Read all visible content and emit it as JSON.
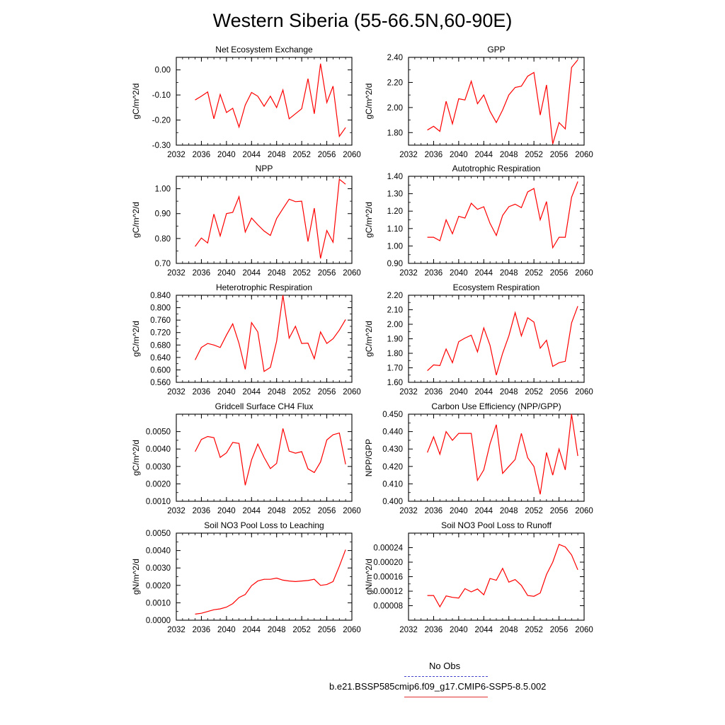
{
  "title": "Western Siberia (55-66.5N,60-90E)",
  "series_color": "#ff0000",
  "obs_color": "#4444cc",
  "legend": [
    {
      "label": "No Obs",
      "style": "dashed",
      "color": "#4444cc"
    },
    {
      "label": "b.e21.BSSP585cmip6.f09_g17.CMIP6-SSP5-8.5.002",
      "style": "solid",
      "color": "#ff0000"
    }
  ],
  "chart_data": [
    {
      "type": "line",
      "title": "Net Ecosystem Exchange",
      "ylabel": "gC/m^2/d",
      "xlim": [
        2032,
        2060
      ],
      "xticks": [
        2032,
        2036,
        2040,
        2044,
        2048,
        2052,
        2056,
        2060
      ],
      "ylim": [
        -0.3,
        0.05
      ],
      "yticks": [
        -0.3,
        -0.2,
        -0.1,
        0.0
      ],
      "yticklabels": [
        "-0.30",
        "-0.20",
        "-0.10",
        "0.00"
      ],
      "x": [
        2035,
        2036,
        2037,
        2038,
        2039,
        2040,
        2041,
        2042,
        2043,
        2044,
        2045,
        2046,
        2047,
        2048,
        2049,
        2050,
        2051,
        2052,
        2053,
        2054,
        2055,
        2056,
        2057,
        2058,
        2059
      ],
      "series": [
        {
          "values": [
            -0.12,
            -0.105,
            -0.088,
            -0.195,
            -0.098,
            -0.17,
            -0.153,
            -0.228,
            -0.14,
            -0.09,
            -0.105,
            -0.145,
            -0.105,
            -0.15,
            -0.08,
            -0.195,
            -0.175,
            -0.155,
            -0.035,
            -0.175,
            0.025,
            -0.13,
            -0.065,
            -0.265,
            -0.23
          ]
        }
      ]
    },
    {
      "type": "line",
      "title": "GPP",
      "ylabel": "gC/m^2/d",
      "xlim": [
        2032,
        2060
      ],
      "xticks": [
        2032,
        2036,
        2040,
        2044,
        2048,
        2052,
        2056,
        2060
      ],
      "ylim": [
        1.7,
        2.4
      ],
      "yticks": [
        1.8,
        2.0,
        2.2,
        2.4
      ],
      "yticklabels": [
        "1.80",
        "2.00",
        "2.20",
        "2.40"
      ],
      "x": [
        2035,
        2036,
        2037,
        2038,
        2039,
        2040,
        2041,
        2042,
        2043,
        2044,
        2045,
        2046,
        2047,
        2048,
        2049,
        2050,
        2051,
        2052,
        2053,
        2054,
        2055,
        2056,
        2057,
        2058,
        2059
      ],
      "series": [
        {
          "values": [
            1.82,
            1.85,
            1.81,
            2.05,
            1.87,
            2.07,
            2.06,
            2.21,
            2.03,
            2.1,
            1.97,
            1.88,
            1.98,
            2.1,
            2.16,
            2.17,
            2.25,
            2.28,
            1.94,
            2.18,
            1.71,
            1.88,
            1.83,
            2.32,
            2.38
          ]
        }
      ]
    },
    {
      "type": "line",
      "title": "NPP",
      "ylabel": "gC/m^2/d",
      "xlim": [
        2032,
        2060
      ],
      "xticks": [
        2032,
        2036,
        2040,
        2044,
        2048,
        2052,
        2056,
        2060
      ],
      "ylim": [
        0.7,
        1.05
      ],
      "yticks": [
        0.7,
        0.8,
        0.9,
        1.0
      ],
      "yticklabels": [
        "0.70",
        "0.80",
        "0.90",
        "1.00"
      ],
      "x": [
        2035,
        2036,
        2037,
        2038,
        2039,
        2040,
        2041,
        2042,
        2043,
        2044,
        2045,
        2046,
        2047,
        2048,
        2049,
        2050,
        2051,
        2052,
        2053,
        2054,
        2055,
        2056,
        2057,
        2058,
        2059
      ],
      "series": [
        {
          "values": [
            0.768,
            0.802,
            0.782,
            0.898,
            0.81,
            0.9,
            0.905,
            0.968,
            0.826,
            0.882,
            0.855,
            0.83,
            0.812,
            0.88,
            0.92,
            0.958,
            0.948,
            0.95,
            0.788,
            0.922,
            0.72,
            0.832,
            0.785,
            1.038,
            1.018
          ]
        }
      ]
    },
    {
      "type": "line",
      "title": "Autotrophic Respiration",
      "ylabel": "gC/m^2/d",
      "xlim": [
        2032,
        2060
      ],
      "xticks": [
        2032,
        2036,
        2040,
        2044,
        2048,
        2052,
        2056,
        2060
      ],
      "ylim": [
        0.9,
        1.4
      ],
      "yticks": [
        0.9,
        1.0,
        1.1,
        1.2,
        1.3,
        1.4
      ],
      "yticklabels": [
        "0.90",
        "1.00",
        "1.10",
        "1.20",
        "1.30",
        "1.40"
      ],
      "x": [
        2035,
        2036,
        2037,
        2038,
        2039,
        2040,
        2041,
        2042,
        2043,
        2044,
        2045,
        2046,
        2047,
        2048,
        2049,
        2050,
        2051,
        2052,
        2053,
        2054,
        2055,
        2056,
        2057,
        2058,
        2059
      ],
      "series": [
        {
          "values": [
            1.05,
            1.05,
            1.03,
            1.15,
            1.07,
            1.17,
            1.16,
            1.245,
            1.21,
            1.225,
            1.13,
            1.06,
            1.175,
            1.225,
            1.24,
            1.22,
            1.31,
            1.33,
            1.15,
            1.255,
            0.99,
            1.05,
            1.05,
            1.28,
            1.37
          ]
        }
      ]
    },
    {
      "type": "line",
      "title": "Heterotrophic Respiration",
      "ylabel": "gC/m^2/d",
      "xlim": [
        2032,
        2060
      ],
      "xticks": [
        2032,
        2036,
        2040,
        2044,
        2048,
        2052,
        2056,
        2060
      ],
      "ylim": [
        0.56,
        0.84
      ],
      "yticks": [
        0.56,
        0.6,
        0.64,
        0.68,
        0.72,
        0.76,
        0.8,
        0.84
      ],
      "yticklabels": [
        "0.560",
        "0.600",
        "0.640",
        "0.680",
        "0.720",
        "0.760",
        "0.800",
        "0.840"
      ],
      "x": [
        2035,
        2036,
        2037,
        2038,
        2039,
        2040,
        2041,
        2042,
        2043,
        2044,
        2045,
        2046,
        2047,
        2048,
        2049,
        2050,
        2051,
        2052,
        2053,
        2054,
        2055,
        2056,
        2057,
        2058,
        2059
      ],
      "series": [
        {
          "values": [
            0.632,
            0.672,
            0.685,
            0.68,
            0.672,
            0.712,
            0.748,
            0.685,
            0.602,
            0.752,
            0.722,
            0.595,
            0.608,
            0.692,
            0.84,
            0.702,
            0.74,
            0.685,
            0.686,
            0.636,
            0.722,
            0.685,
            0.7,
            0.728,
            0.762
          ]
        }
      ]
    },
    {
      "type": "line",
      "title": "Ecosystem Respiration",
      "ylabel": "gC/m^2/d",
      "xlim": [
        2032,
        2060
      ],
      "xticks": [
        2032,
        2036,
        2040,
        2044,
        2048,
        2052,
        2056,
        2060
      ],
      "ylim": [
        1.6,
        2.2
      ],
      "yticks": [
        1.6,
        1.7,
        1.8,
        1.9,
        2.0,
        2.1,
        2.2
      ],
      "yticklabels": [
        "1.60",
        "1.70",
        "1.80",
        "1.90",
        "2.00",
        "2.10",
        "2.20"
      ],
      "x": [
        2035,
        2036,
        2037,
        2038,
        2039,
        2040,
        2041,
        2042,
        2043,
        2044,
        2045,
        2046,
        2047,
        2048,
        2049,
        2050,
        2051,
        2052,
        2053,
        2054,
        2055,
        2056,
        2057,
        2058,
        2059
      ],
      "series": [
        {
          "values": [
            1.68,
            1.72,
            1.715,
            1.83,
            1.735,
            1.88,
            1.905,
            1.925,
            1.81,
            1.975,
            1.855,
            1.65,
            1.8,
            1.92,
            2.08,
            1.92,
            2.045,
            2.015,
            1.835,
            1.89,
            1.71,
            1.735,
            1.745,
            2.01,
            2.125
          ]
        }
      ]
    },
    {
      "type": "line",
      "title": "Gridcell Surface CH4 Flux",
      "ylabel": "gC/m^2/d",
      "xlim": [
        2032,
        2060
      ],
      "xticks": [
        2032,
        2036,
        2040,
        2044,
        2048,
        2052,
        2056,
        2060
      ],
      "ylim": [
        0.001,
        0.006
      ],
      "yticks": [
        0.001,
        0.002,
        0.003,
        0.004,
        0.005
      ],
      "yticklabels": [
        "0.0010",
        "0.0020",
        "0.0030",
        "0.0040",
        "0.0050"
      ],
      "x": [
        2035,
        2036,
        2037,
        2038,
        2039,
        2040,
        2041,
        2042,
        2043,
        2044,
        2045,
        2046,
        2047,
        2048,
        2049,
        2050,
        2051,
        2052,
        2053,
        2054,
        2055,
        2056,
        2057,
        2058,
        2059
      ],
      "series": [
        {
          "values": [
            0.00385,
            0.00455,
            0.00472,
            0.00465,
            0.00352,
            0.00378,
            0.00438,
            0.00432,
            0.00192,
            0.00338,
            0.00428,
            0.00352,
            0.00288,
            0.00318,
            0.00518,
            0.00388,
            0.00376,
            0.00385,
            0.00286,
            0.00265,
            0.00325,
            0.00452,
            0.00482,
            0.00492,
            0.00312
          ]
        }
      ]
    },
    {
      "type": "line",
      "title": "Carbon Use Efficiency (NPP/GPP)",
      "ylabel": "NPP/GPP",
      "xlim": [
        2032,
        2060
      ],
      "xticks": [
        2032,
        2036,
        2040,
        2044,
        2048,
        2052,
        2056,
        2060
      ],
      "ylim": [
        0.4,
        0.45
      ],
      "yticks": [
        0.4,
        0.41,
        0.42,
        0.43,
        0.44,
        0.45
      ],
      "yticklabels": [
        "0.400",
        "0.410",
        "0.420",
        "0.430",
        "0.440",
        "0.450"
      ],
      "x": [
        2035,
        2036,
        2037,
        2038,
        2039,
        2040,
        2041,
        2042,
        2043,
        2044,
        2045,
        2046,
        2047,
        2048,
        2049,
        2050,
        2051,
        2052,
        2053,
        2054,
        2055,
        2056,
        2057,
        2058,
        2059
      ],
      "series": [
        {
          "values": [
            0.428,
            0.437,
            0.427,
            0.44,
            0.435,
            0.439,
            0.439,
            0.439,
            0.412,
            0.418,
            0.433,
            0.444,
            0.416,
            0.42,
            0.424,
            0.439,
            0.425,
            0.42,
            0.404,
            0.428,
            0.415,
            0.43,
            0.418,
            0.45,
            0.426
          ]
        }
      ]
    },
    {
      "type": "line",
      "title": "Soil NO3 Pool Loss to Leaching",
      "ylabel": "gN/m^2/d",
      "xlim": [
        2032,
        2060
      ],
      "xticks": [
        2032,
        2036,
        2040,
        2044,
        2048,
        2052,
        2056,
        2060
      ],
      "ylim": [
        0.0,
        0.005
      ],
      "yticks": [
        0.0,
        0.001,
        0.002,
        0.003,
        0.004,
        0.005
      ],
      "yticklabels": [
        "0.0000",
        "0.0010",
        "0.0020",
        "0.0030",
        "0.0040",
        "0.0050"
      ],
      "x": [
        2035,
        2036,
        2037,
        2038,
        2039,
        2040,
        2041,
        2042,
        2043,
        2044,
        2045,
        2046,
        2047,
        2048,
        2049,
        2050,
        2051,
        2052,
        2053,
        2054,
        2055,
        2056,
        2057,
        2058,
        2059
      ],
      "series": [
        {
          "values": [
            0.00035,
            0.0004,
            0.0005,
            0.0006,
            0.00065,
            0.00075,
            0.00095,
            0.0013,
            0.00148,
            0.00198,
            0.00225,
            0.00235,
            0.00235,
            0.00242,
            0.0023,
            0.00225,
            0.00222,
            0.00225,
            0.00228,
            0.00235,
            0.002,
            0.00205,
            0.00222,
            0.0031,
            0.00405
          ]
        }
      ]
    },
    {
      "type": "line",
      "title": "Soil NO3 Pool Loss to Runoff",
      "ylabel": "gN/m^2/d",
      "xlim": [
        2032,
        2060
      ],
      "xticks": [
        2032,
        2036,
        2040,
        2044,
        2048,
        2052,
        2056,
        2060
      ],
      "ylim": [
        4e-05,
        0.00028
      ],
      "yticks": [
        8e-05,
        0.00012,
        0.00016,
        0.0002,
        0.00024
      ],
      "yticklabels": [
        "0.00008",
        "0.00012",
        "0.00016",
        "0.00020",
        "0.00024"
      ],
      "x": [
        2035,
        2036,
        2037,
        2038,
        2039,
        2040,
        2041,
        2042,
        2043,
        2044,
        2045,
        2046,
        2047,
        2048,
        2049,
        2050,
        2051,
        2052,
        2053,
        2054,
        2055,
        2056,
        2057,
        2058,
        2059
      ],
      "series": [
        {
          "values": [
            0.000108,
            0.000108,
            7.7e-05,
            0.000107,
            0.000103,
            0.000101,
            0.000127,
            0.000118,
            0.000126,
            0.00011,
            0.000155,
            0.00015,
            0.000183,
            0.000145,
            0.000152,
            0.000136,
            0.000108,
            0.000106,
            0.000115,
            0.000166,
            0.0002,
            0.000249,
            0.000242,
            0.00022,
            0.000179
          ]
        }
      ]
    }
  ]
}
